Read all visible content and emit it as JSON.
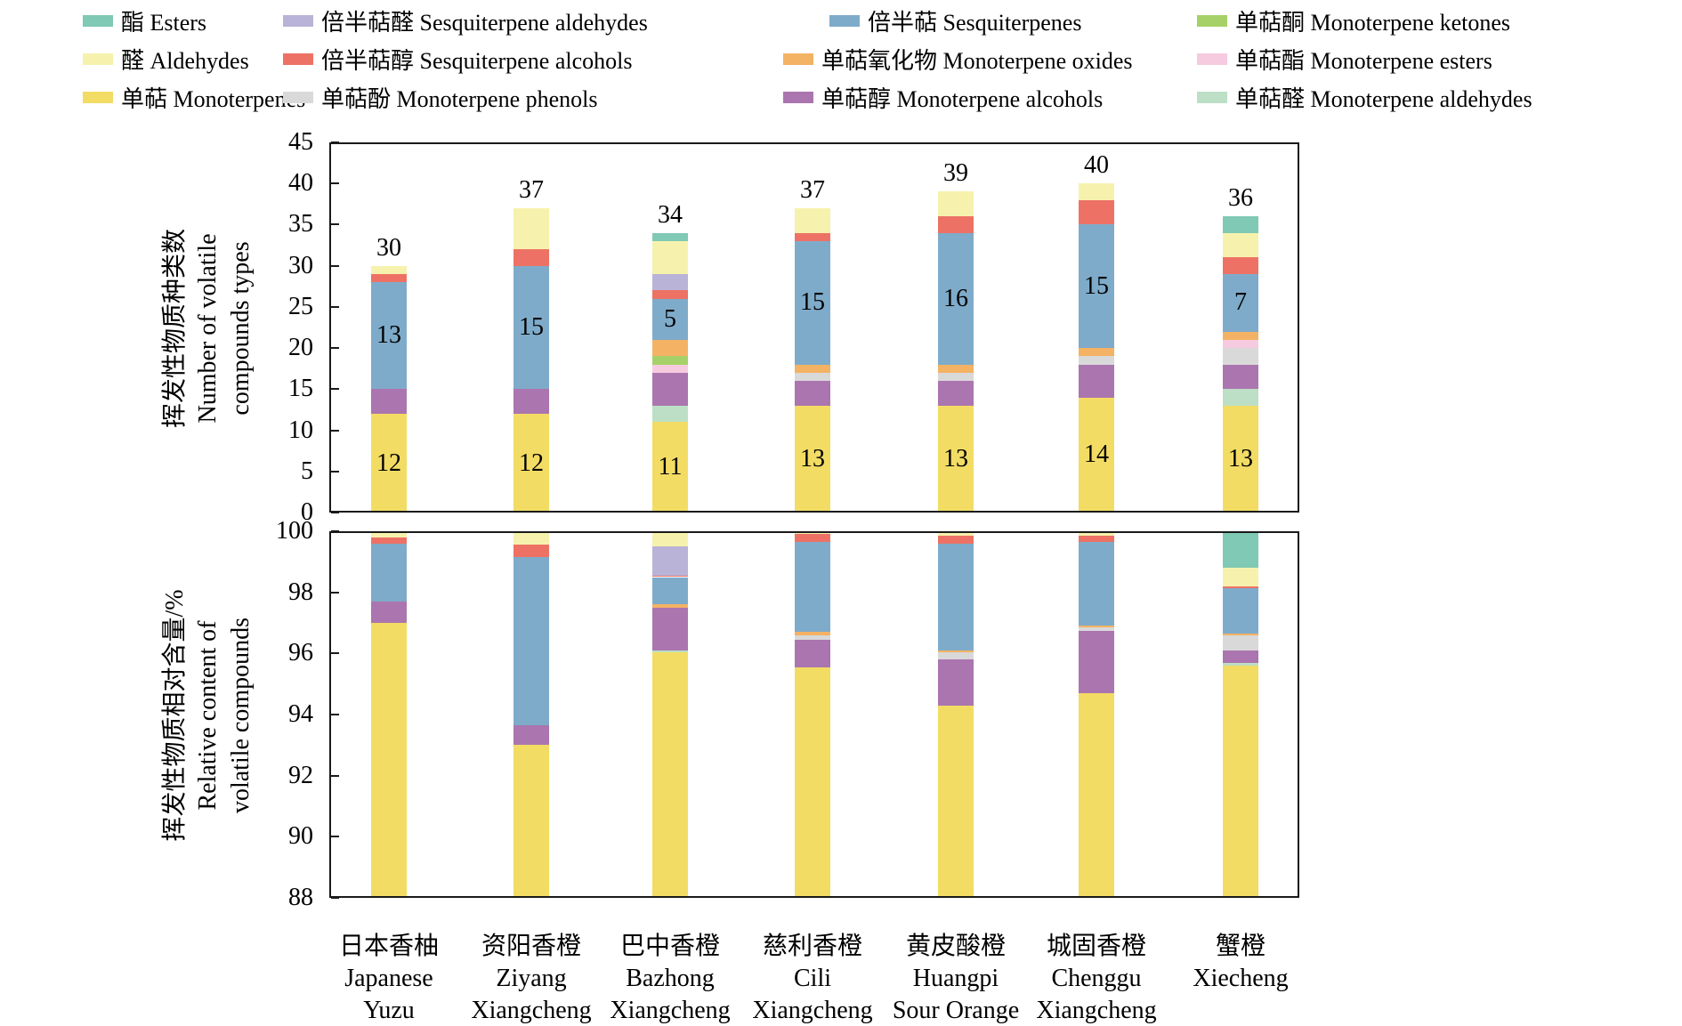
{
  "legend": {
    "items": [
      {
        "key": "esters",
        "zh": "酯",
        "en": "Esters"
      },
      {
        "key": "sesquiterpene_aldehydes",
        "zh": "倍半萜醛",
        "en": "Sesquiterpene aldehydes"
      },
      {
        "key": "sesquiterpenes",
        "zh": "倍半萜",
        "en": "Sesquiterpenes"
      },
      {
        "key": "monoterpene_ketones",
        "zh": "单萜酮",
        "en": "Monoterpene ketones"
      },
      {
        "key": "aldehydes",
        "zh": "醛",
        "en": "Aldehydes"
      },
      {
        "key": "sesquiterpene_alcohols",
        "zh": "倍半萜醇",
        "en": "Sesquiterpene alcohols"
      },
      {
        "key": "monoterpene_oxides",
        "zh": "单萜氧化物",
        "en": "Monoterpene oxides"
      },
      {
        "key": "monoterpene_esters",
        "zh": "单萜酯",
        "en": "Monoterpene esters"
      },
      {
        "key": "monoterpenes",
        "zh": "单萜",
        "en": "Monoterpenes"
      },
      {
        "key": "monoterpene_phenols",
        "zh": "单萜酚",
        "en": "Monoterpene phenols"
      },
      {
        "key": "monoterpene_alcohols",
        "zh": "单萜醇",
        "en": "Monoterpene alcohols"
      },
      {
        "key": "monoterpene_aldehydes",
        "zh": "单萜醛",
        "en": "Monoterpene aldehydes"
      }
    ]
  },
  "chart_data": {
    "type": "bar",
    "stacked": true,
    "grid": false,
    "legend_position": "top",
    "series_colors": {
      "esters": "#80c9b4",
      "aldehydes": "#f6f2ad",
      "monoterpenes": "#f2dc64",
      "sesquiterpene_aldehydes": "#b9b3d8",
      "sesquiterpene_alcohols": "#ed7265",
      "monoterpene_phenols": "#d9d9d9",
      "sesquiterpenes": "#7fabca",
      "monoterpene_oxides": "#f4b264",
      "monoterpene_alcohols": "#ab75af",
      "monoterpene_ketones": "#a6d168",
      "monoterpene_esters": "#f7cbdf",
      "monoterpene_aldehydes": "#bcdfc6"
    },
    "stack_order": [
      "monoterpenes",
      "monoterpene_aldehydes",
      "monoterpene_alcohols",
      "monoterpene_phenols",
      "monoterpene_esters",
      "monoterpene_ketones",
      "monoterpene_oxides",
      "sesquiterpenes",
      "sesquiterpene_alcohols",
      "sesquiterpene_aldehydes",
      "aldehydes",
      "esters"
    ],
    "categories": [
      {
        "zh": "日本香柚",
        "en": [
          "Japanese",
          "Yuzu"
        ]
      },
      {
        "zh": "资阳香橙",
        "en": [
          "Ziyang",
          "Xiangcheng"
        ]
      },
      {
        "zh": "巴中香橙",
        "en": [
          "Bazhong",
          "Xiangcheng"
        ]
      },
      {
        "zh": "慈利香橙",
        "en": [
          "Cili",
          "Xiangcheng"
        ]
      },
      {
        "zh": "黄皮酸橙",
        "en": [
          "Huangpi",
          "Sour Orange"
        ]
      },
      {
        "zh": "城固香橙",
        "en": [
          "Chenggu",
          "Xiangcheng"
        ]
      },
      {
        "zh": "蟹橙",
        "en": [
          "Xiecheng"
        ]
      }
    ],
    "charts": [
      {
        "name": "number_of_types",
        "ylabel_zh": "挥发性物质种类数",
        "ylabel_en_lines": [
          "Number of volatile",
          "compounds types"
        ],
        "ylim": [
          0,
          45
        ],
        "yticks": [
          0,
          5,
          10,
          15,
          20,
          25,
          30,
          35,
          40,
          45
        ],
        "series": {
          "monoterpenes": [
            12,
            12,
            11,
            13,
            13,
            14,
            13
          ],
          "monoterpene_aldehydes": [
            0,
            0,
            2,
            0,
            0,
            0,
            2
          ],
          "monoterpene_alcohols": [
            3,
            3,
            4,
            3,
            3,
            4,
            3
          ],
          "monoterpene_phenols": [
            0,
            0,
            0,
            1,
            1,
            1,
            2
          ],
          "monoterpene_esters": [
            0,
            0,
            1,
            0,
            0,
            0,
            1
          ],
          "monoterpene_ketones": [
            0,
            0,
            1,
            0,
            0,
            0,
            0
          ],
          "monoterpene_oxides": [
            0,
            0,
            2,
            1,
            1,
            1,
            1
          ],
          "sesquiterpenes": [
            13,
            15,
            5,
            15,
            16,
            15,
            7
          ],
          "sesquiterpene_alcohols": [
            1,
            2,
            1,
            1,
            2,
            3,
            2
          ],
          "sesquiterpene_aldehydes": [
            0,
            0,
            2,
            0,
            0,
            0,
            0
          ],
          "aldehydes": [
            1,
            5,
            4,
            3,
            3,
            2,
            3
          ],
          "esters": [
            0,
            0,
            1,
            0,
            0,
            0,
            2
          ]
        },
        "total_labels": [
          30,
          37,
          34,
          37,
          39,
          40,
          36
        ],
        "inner_labels": {
          "sesquiterpenes": [
            13,
            15,
            5,
            15,
            16,
            15,
            7
          ],
          "monoterpenes": [
            12,
            12,
            11,
            13,
            13,
            14,
            13
          ]
        }
      },
      {
        "name": "relative_content",
        "ylabel_zh": "挥发性物质相对含量/%",
        "ylabel_en_lines": [
          "Relative content of",
          "volatile compounds"
        ],
        "ylim": [
          88,
          100
        ],
        "yticks": [
          88,
          90,
          92,
          94,
          96,
          98,
          100
        ],
        "series": {
          "monoterpenes": [
            97.0,
            93.0,
            96.05,
            95.55,
            94.3,
            94.7,
            95.6
          ],
          "monoterpene_aldehydes": [
            0,
            0,
            0.05,
            0,
            0,
            0,
            0.1
          ],
          "monoterpene_alcohols": [
            0.7,
            0.65,
            1.4,
            0.9,
            1.5,
            2.05,
            0.4
          ],
          "monoterpene_phenols": [
            0,
            0,
            0,
            0.15,
            0.25,
            0.1,
            0.5
          ],
          "monoterpene_esters": [
            0,
            0,
            0,
            0,
            0,
            0,
            0
          ],
          "monoterpene_ketones": [
            0,
            0,
            0,
            0,
            0,
            0,
            0
          ],
          "monoterpene_oxides": [
            0,
            0,
            0.1,
            0.1,
            0.05,
            0.05,
            0.05
          ],
          "sesquiterpenes": [
            1.9,
            5.5,
            0.9,
            2.95,
            3.5,
            2.75,
            1.5
          ],
          "sesquiterpene_alcohols": [
            0.2,
            0.4,
            0.05,
            0.25,
            0.25,
            0.2,
            0.05
          ],
          "sesquiterpene_aldehydes": [
            0,
            0,
            0.95,
            0,
            0,
            0,
            0
          ],
          "aldehydes": [
            0.2,
            0.45,
            0.45,
            0.1,
            0.15,
            0.15,
            0.6
          ],
          "esters": [
            0,
            0,
            0.05,
            0,
            0,
            0,
            1.2
          ]
        }
      }
    ]
  }
}
